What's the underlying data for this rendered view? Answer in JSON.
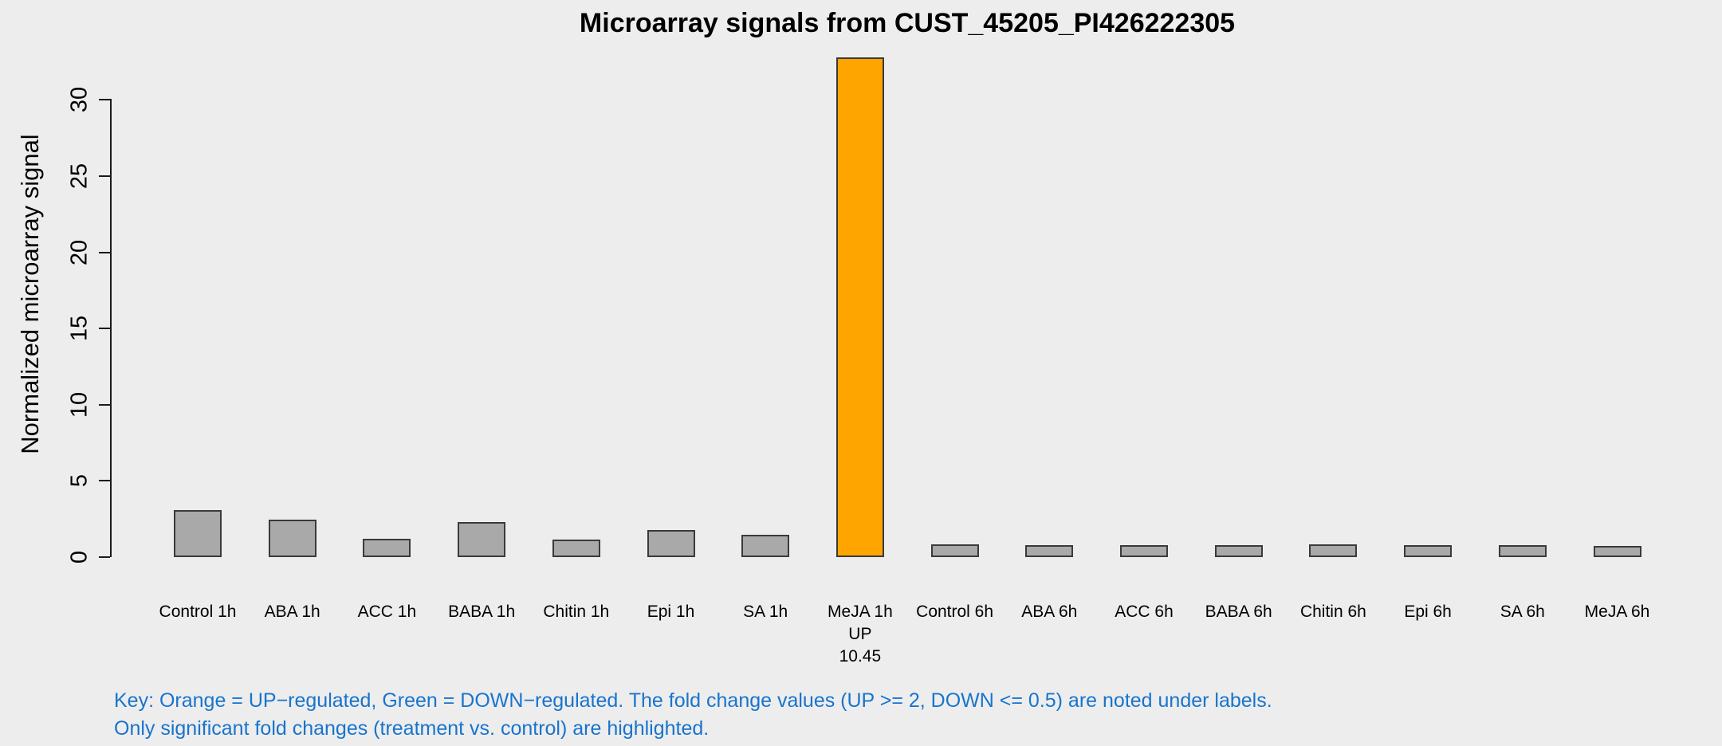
{
  "figure": {
    "background_color": "#EDEDED",
    "text_color": "#000000"
  },
  "chart_data": {
    "type": "bar",
    "title": "Microarray signals from CUST_45205_PI426222305",
    "ylabel": "Normalized microarray signal",
    "xlabel": "",
    "categories": [
      "Control 1h",
      "ABA 1h",
      "ACC 1h",
      "BABA 1h",
      "Chitin 1h",
      "Epi 1h",
      "SA 1h",
      "MeJA 1h",
      "Control 6h",
      "ABA 6h",
      "ACC 6h",
      "BABA 6h",
      "Chitin 6h",
      "Epi 6h",
      "SA 6h",
      "MeJA 6h"
    ],
    "values": [
      3.1,
      2.45,
      1.2,
      2.3,
      1.15,
      1.8,
      1.45,
      32.8,
      0.85,
      0.8,
      0.78,
      0.8,
      0.82,
      0.78,
      0.8,
      0.75
    ],
    "yticks": [
      0,
      5,
      10,
      15,
      20,
      25,
      30
    ],
    "ylim": [
      0,
      32.8
    ],
    "grid": false,
    "legend": "none",
    "bar_default_color": "#A9A9A9",
    "bar_border_color": "#3a3a3a",
    "up_color": "#FFA500",
    "down_color": "#008000",
    "highlighted_bars": [
      {
        "index": 7,
        "category": "MeJA 1h",
        "color": "#FFA500",
        "regulation": "UP",
        "fold_change": "10.45"
      }
    ]
  },
  "key": {
    "line1": "Key: Orange = UP−regulated, Green = DOWN−regulated. The fold change values (UP >= 2, DOWN <= 0.5) are noted under labels.",
    "line2": "Only significant fold changes (treatment vs. control) are highlighted.",
    "color": "#1874CD"
  }
}
